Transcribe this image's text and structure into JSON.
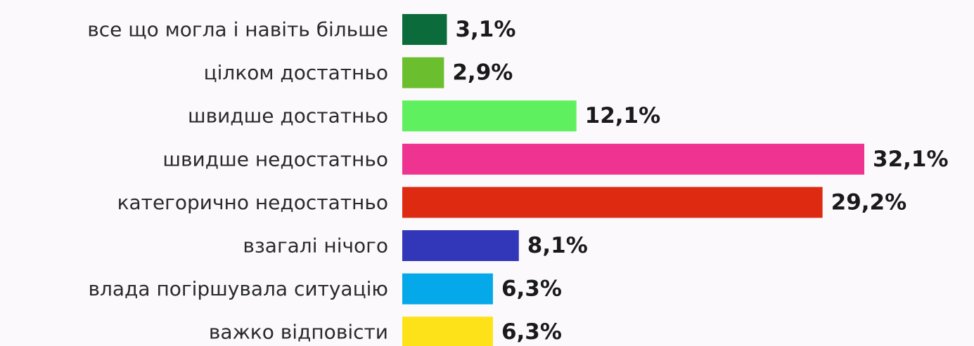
{
  "chart_data": {
    "type": "bar",
    "orientation": "horizontal",
    "title": "",
    "xlabel": "",
    "ylabel": "",
    "xlim": [
      0,
      32.1
    ],
    "grid": false,
    "legend": "none",
    "categories": [
      "все що могла і навіть більше",
      "цілком достатньо",
      "швидше достатньо",
      "швидше недостатньо",
      "категорично недостатньо",
      "взагалі нічого",
      "влада погіршувала ситуацію",
      "важко відповісти"
    ],
    "values": [
      3.1,
      2.9,
      12.1,
      32.1,
      29.2,
      8.1,
      6.3,
      6.3
    ],
    "value_labels": [
      "3,1%",
      "2,9%",
      "12,1%",
      "32,1%",
      "29,2%",
      "8,1%",
      "6,3%",
      "6,3%"
    ],
    "colors": [
      "#0b6b3a",
      "#6bbf2f",
      "#5ff05f",
      "#ee3391",
      "#dd2a10",
      "#3236b8",
      "#05a8e8",
      "#fde21a"
    ]
  }
}
